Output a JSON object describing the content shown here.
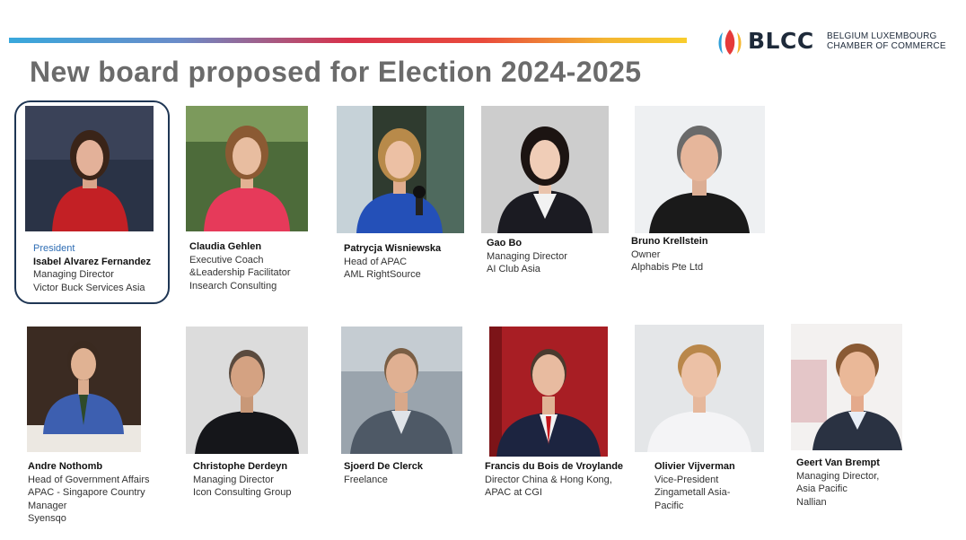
{
  "title": "New board proposed for Election 2024-2025",
  "logo": {
    "brand": "BLCC",
    "subtitle_line1": "BELGIUM LUXEMBOURG",
    "subtitle_line2": "CHAMBER OF COMMERCE"
  },
  "colors": {
    "title": "#6b6b6b",
    "highlight_border": "#1f3654",
    "president_label": "#2e6db4"
  },
  "members": [
    {
      "id": "isabel",
      "tag": "President",
      "name": "Isabel Alvarez Fernandez",
      "lines": [
        "Managing Director",
        "Victor Buck Services Asia"
      ]
    },
    {
      "id": "claudia",
      "name": "Claudia Gehlen",
      "lines": [
        "Executive Coach",
        "&Leadership Facilitator",
        "Insearch Consulting"
      ]
    },
    {
      "id": "patrycja",
      "name": "Patrycja Wisniewska",
      "lines": [
        "Head of APAC",
        "AML RightSource"
      ]
    },
    {
      "id": "gao",
      "name": "Gao Bo",
      "lines": [
        "Managing Director",
        "AI Club Asia"
      ]
    },
    {
      "id": "bruno",
      "name": "Bruno Krellstein",
      "lines": [
        "Owner",
        "Alphabis Pte Ltd"
      ]
    },
    {
      "id": "andre",
      "name": "Andre Nothomb",
      "lines": [
        "Head of Government Affairs",
        "APAC - Singapore Country",
        "Manager",
        "Syensqo"
      ]
    },
    {
      "id": "christophe",
      "name": "Christophe Derdeyn",
      "lines": [
        "Managing Director",
        "Icon Consulting Group"
      ]
    },
    {
      "id": "sjoerd",
      "name": "Sjoerd De Clerck",
      "lines": [
        "Freelance"
      ]
    },
    {
      "id": "francis",
      "name": "Francis du Bois de Vroylande",
      "lines": [
        "Director China & Hong Kong,",
        "APAC at CGI"
      ]
    },
    {
      "id": "olivier",
      "name": "Olivier Vijverman",
      "lines": [
        "Vice-President",
        "Zingametall Asia-",
        "Pacific"
      ]
    },
    {
      "id": "geert",
      "name": "Geert Van Brempt",
      "lines": [
        "Managing Director,",
        "Asia Pacific",
        "Nallian"
      ]
    }
  ]
}
